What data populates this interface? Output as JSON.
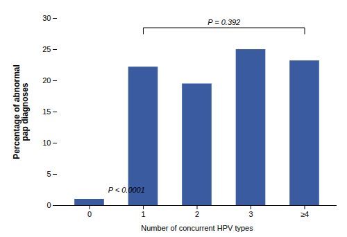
{
  "chart_data": {
    "type": "bar",
    "categories": [
      "0",
      "1",
      "2",
      "3",
      "≥4"
    ],
    "values": [
      1.0,
      22.2,
      19.5,
      25.0,
      23.2
    ],
    "color": "#3A5BA0",
    "xlabel": "Number of concurrent HPV types",
    "ylabel": "Percentage of abnormal\npap diagnoses",
    "ylim": [
      0,
      30
    ],
    "yticks": [
      0,
      5,
      10,
      15,
      20,
      25,
      30
    ],
    "grid": false,
    "annotations": [
      {
        "text": "P < 0.0001",
        "category": "0"
      },
      {
        "text": "P = 0.392",
        "bracket": [
          "1",
          "≥4"
        ]
      }
    ]
  }
}
